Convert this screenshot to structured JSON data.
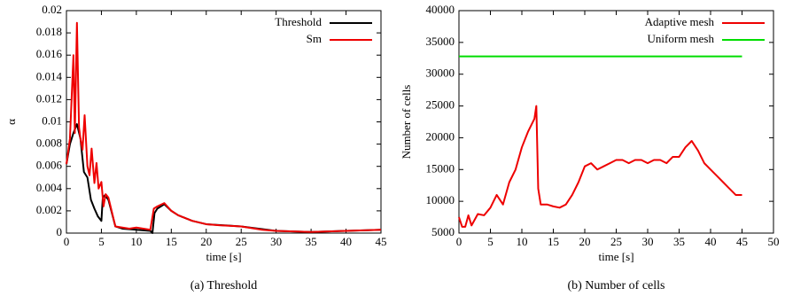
{
  "chart_data": [
    {
      "type": "line",
      "caption": "(a) Threshold",
      "xlabel": "time [s]",
      "ylabel": "α",
      "xlim": [
        0,
        45
      ],
      "xticks": [
        0,
        5,
        10,
        15,
        20,
        25,
        30,
        35,
        40,
        45
      ],
      "ylim": [
        0,
        0.02
      ],
      "yticks": [
        0,
        0.002,
        0.004,
        0.006,
        0.008,
        0.01,
        0.012,
        0.014,
        0.016,
        0.018,
        0.02
      ],
      "legend": "upper right",
      "series": [
        {
          "name": "Threshold",
          "color": "#000000",
          "x": [
            0,
            0.5,
            1,
            1.5,
            2,
            2.5,
            3,
            3.5,
            4,
            4.5,
            5,
            5.2,
            5.5,
            6,
            7,
            8,
            10,
            12,
            12.3,
            12.6,
            13,
            14,
            15,
            16,
            18,
            20,
            25,
            30,
            35,
            40,
            45
          ],
          "values": [
            0.0062,
            0.008,
            0.009,
            0.0098,
            0.0085,
            0.0055,
            0.005,
            0.003,
            0.0022,
            0.0015,
            0.0011,
            0.0032,
            0.0034,
            0.003,
            0.0006,
            0.0004,
            0.0003,
            0.0002,
            0,
            0.0018,
            0.0022,
            0.0026,
            0.002,
            0.0016,
            0.0011,
            0.0008,
            0.0006,
            0.0002,
            0.0001,
            0.0002,
            0.0003
          ]
        },
        {
          "name": "Sm",
          "color": "#ee0000",
          "x": [
            0,
            0.5,
            1,
            1.2,
            1.5,
            1.8,
            2,
            2.3,
            2.6,
            3,
            3.3,
            3.6,
            4,
            4.3,
            4.6,
            5,
            5.3,
            5.6,
            6,
            7,
            8,
            9,
            10,
            11,
            12,
            12.5,
            13,
            14,
            15,
            16,
            18,
            20,
            22,
            25,
            28,
            30,
            35,
            40,
            45
          ],
          "values": [
            0.0062,
            0.0085,
            0.016,
            0.009,
            0.0189,
            0.0095,
            0.0085,
            0.0075,
            0.0106,
            0.006,
            0.0052,
            0.0076,
            0.0045,
            0.0063,
            0.004,
            0.0046,
            0.0024,
            0.0035,
            0.0032,
            0.0006,
            0.0005,
            0.0004,
            0.0005,
            0.0004,
            0.0003,
            0.0022,
            0.0024,
            0.0027,
            0.002,
            0.0016,
            0.0011,
            0.0008,
            0.0007,
            0.0006,
            0.0003,
            0.0002,
            0.0001,
            0.0002,
            0.0003
          ]
        }
      ]
    },
    {
      "type": "line",
      "caption": "(b) Number of cells",
      "xlabel": "time [s]",
      "ylabel": "Number of cells",
      "xlim": [
        0,
        50
      ],
      "xticks": [
        0,
        5,
        10,
        15,
        20,
        25,
        30,
        35,
        40,
        45,
        50
      ],
      "ylim": [
        5000,
        40000
      ],
      "yticks": [
        5000,
        10000,
        15000,
        20000,
        25000,
        30000,
        35000,
        40000
      ],
      "legend": "upper right",
      "series": [
        {
          "name": "Adaptive mesh",
          "color": "#ee0000",
          "x": [
            0,
            0.5,
            1,
            1.5,
            2,
            3,
            4,
            5,
            6,
            7,
            8,
            9,
            10,
            11,
            12,
            12.3,
            12.6,
            13,
            14,
            15,
            16,
            17,
            18,
            19,
            20,
            21,
            22,
            23,
            24,
            25,
            26,
            27,
            28,
            29,
            30,
            31,
            32,
            33,
            34,
            35,
            36,
            37,
            38,
            39,
            40,
            41,
            42,
            43,
            44,
            45
          ],
          "values": [
            7500,
            6000,
            6000,
            7800,
            6200,
            8000,
            7800,
            9000,
            11000,
            9500,
            13000,
            15000,
            18500,
            21000,
            23000,
            25000,
            12000,
            9500,
            9500,
            9200,
            9000,
            9500,
            11000,
            13000,
            15500,
            16000,
            15000,
            15500,
            16000,
            16500,
            16500,
            16000,
            16500,
            16500,
            16000,
            16500,
            16500,
            16000,
            17000,
            17000,
            18500,
            19500,
            18000,
            16000,
            15000,
            14000,
            13000,
            12000,
            11000,
            11000
          ]
        },
        {
          "name": "Uniform mesh",
          "color": "#00dd00",
          "x": [
            0,
            45
          ],
          "values": [
            32800,
            32800
          ]
        }
      ]
    }
  ]
}
